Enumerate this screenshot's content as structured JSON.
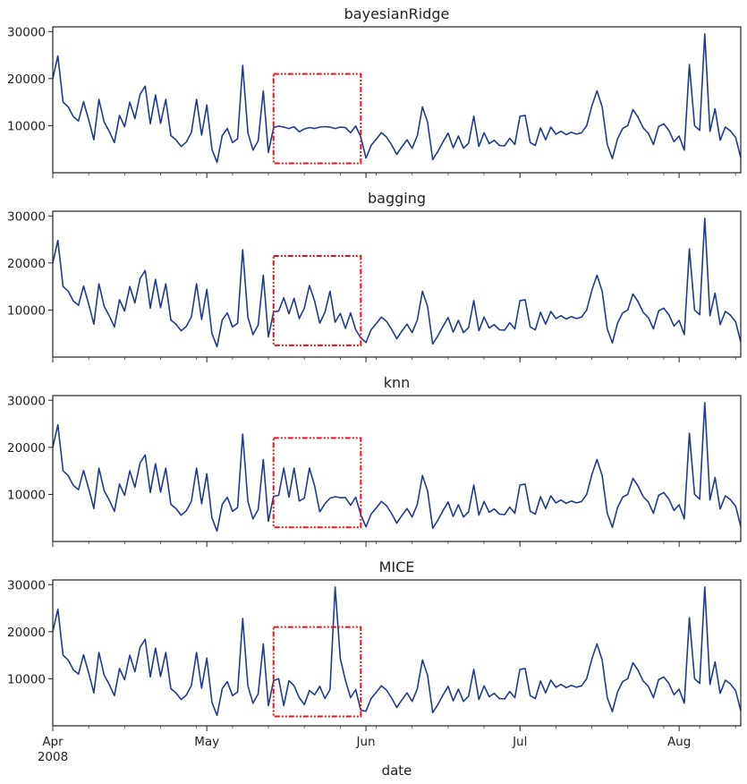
{
  "chart_data": {
    "type": "line",
    "shared_x": {
      "label": "date",
      "range": [
        "2008-04-01",
        "2008-08-13"
      ],
      "ticks": [
        {
          "date": "2008-04-01",
          "label": "Apr",
          "sublabel": "2008"
        },
        {
          "date": "2008-05-01",
          "label": "May",
          "sublabel": ""
        },
        {
          "date": "2008-06-01",
          "label": "Jun",
          "sublabel": ""
        },
        {
          "date": "2008-07-01",
          "label": "Jul",
          "sublabel": ""
        },
        {
          "date": "2008-08-01",
          "label": "Aug",
          "sublabel": ""
        }
      ]
    },
    "y_axis": {
      "ticks": [
        10000,
        20000,
        30000
      ],
      "tick_labels": [
        "10000",
        "20000",
        "30000"
      ]
    },
    "line_color": "#1f3a8f",
    "highlight_color": "#e8131b",
    "common_series": {
      "start_date": "2008-04-01",
      "head": [
        20000,
        24800,
        15000,
        14000,
        11900,
        11000,
        15100,
        11200,
        7000,
        15600,
        10800,
        8800,
        6400,
        12200,
        9800,
        15000,
        11500,
        16700,
        18400,
        10400,
        16500,
        10500,
        15600,
        7900,
        7000,
        5600,
        6500,
        8500,
        15600,
        8000,
        14400,
        5000,
        2200,
        7900,
        9400,
        6400,
        7200,
        22800,
        8500,
        4800,
        6800,
        17400,
        4300,
        9600
      ],
      "tail": [
        3100,
        5800,
        7100,
        8500,
        7600,
        5900,
        3900,
        5500,
        7000,
        5200,
        7900,
        14000,
        10800,
        2800,
        4500,
        6500,
        8400,
        5300,
        7800,
        5200,
        6300,
        12000,
        5600,
        8500,
        6200,
        6900,
        5800,
        5700,
        7300,
        6000,
        12000,
        12200,
        6400,
        5800,
        9500,
        7000,
        9700,
        8200,
        8800,
        8100,
        8600,
        8200,
        8500,
        10000,
        14200,
        17400,
        14000,
        6000,
        3000,
        7200,
        9400,
        10000,
        13400,
        11800,
        9500,
        8400,
        6000,
        9800,
        10400,
        9000,
        6600,
        7800,
        4800,
        23000,
        10000,
        9000,
        29500,
        8800,
        13600,
        6900,
        9700,
        8900,
        7500,
        3200
      ]
    },
    "panels": [
      {
        "title": "bayesianRidge",
        "ylim": [
          0,
          31000
        ],
        "box": {
          "start": "2008-05-14",
          "end": "2008-05-31",
          "ymin": 2000,
          "ymax": 21000
        },
        "imputed": [
          9900,
          9700,
          9400,
          9800,
          8700,
          9300,
          9600,
          9400,
          9700,
          9800,
          9700,
          9400,
          9700,
          9600,
          8500,
          9900,
          7600
        ]
      },
      {
        "title": "bagging",
        "ylim": [
          0,
          31000
        ],
        "box": {
          "start": "2008-05-14",
          "end": "2008-05-31",
          "ymin": 2500,
          "ymax": 21500
        },
        "imputed": [
          9800,
          12600,
          9200,
          12500,
          8200,
          10400,
          15200,
          11900,
          7200,
          9500,
          14000,
          7400,
          9300,
          6100,
          9400,
          5800,
          4100
        ]
      },
      {
        "title": "knn",
        "ylim": [
          0,
          31000
        ],
        "box": {
          "start": "2008-05-14",
          "end": "2008-05-31",
          "ymin": 3000,
          "ymax": 22000
        },
        "imputed": [
          9800,
          15600,
          9400,
          15600,
          8600,
          9200,
          15600,
          11800,
          6300,
          8000,
          9200,
          9500,
          9300,
          9300,
          7700,
          9400,
          5700
        ]
      },
      {
        "title": "MICE",
        "ylim": [
          0,
          31000
        ],
        "box": {
          "start": "2008-05-14",
          "end": "2008-05-31",
          "ymin": 2000,
          "ymax": 21000
        },
        "imputed": [
          10000,
          4300,
          9600,
          8500,
          6000,
          4500,
          7500,
          6600,
          8400,
          5800,
          7700,
          29500,
          14300,
          9700,
          6000,
          7700,
          3300
        ]
      }
    ]
  }
}
